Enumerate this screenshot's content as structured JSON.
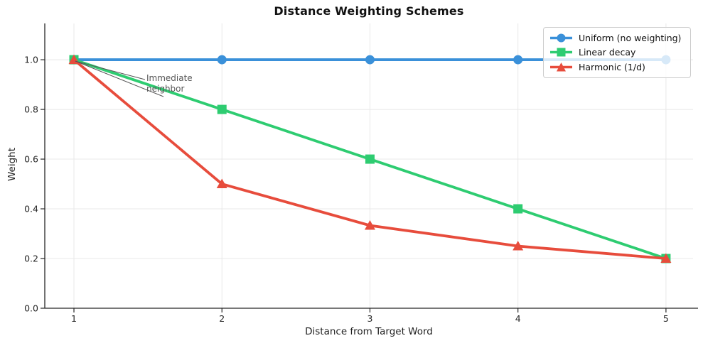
{
  "chart_data": {
    "type": "line",
    "title": "Distance Weighting Schemes",
    "xlabel": "Distance from Target Word",
    "ylabel": "Weight",
    "x": [
      1,
      2,
      3,
      4,
      5
    ],
    "x_tick_labels": [
      "1",
      "2",
      "3",
      "4",
      "5"
    ],
    "y_ticks": [
      0.0,
      0.2,
      0.4,
      0.6,
      0.8,
      1.0
    ],
    "y_tick_labels": [
      "0.0",
      "0.2",
      "0.4",
      "0.6",
      "0.8",
      "1.0"
    ],
    "xlim": [
      0.803,
      5.183
    ],
    "ylim": [
      0,
      1.146
    ],
    "grid": true,
    "legend_position": "upper right",
    "series": [
      {
        "name": "Uniform (no weighting)",
        "color": "#3a90d9",
        "marker": "circle",
        "values": [
          1.0,
          1.0,
          1.0,
          1.0,
          1.0
        ]
      },
      {
        "name": "Linear decay",
        "color": "#2ecc71",
        "marker": "square",
        "values": [
          1.0,
          0.8,
          0.6,
          0.4,
          0.2
        ]
      },
      {
        "name": "Harmonic (1/d)",
        "color": "#e74c3c",
        "marker": "triangle",
        "values": [
          1.0,
          0.5,
          0.333,
          0.25,
          0.2
        ]
      }
    ],
    "annotation": {
      "text": "Immediate\nneighbor",
      "target_x": 1,
      "target_y": 1.0,
      "color": "#555555"
    }
  }
}
